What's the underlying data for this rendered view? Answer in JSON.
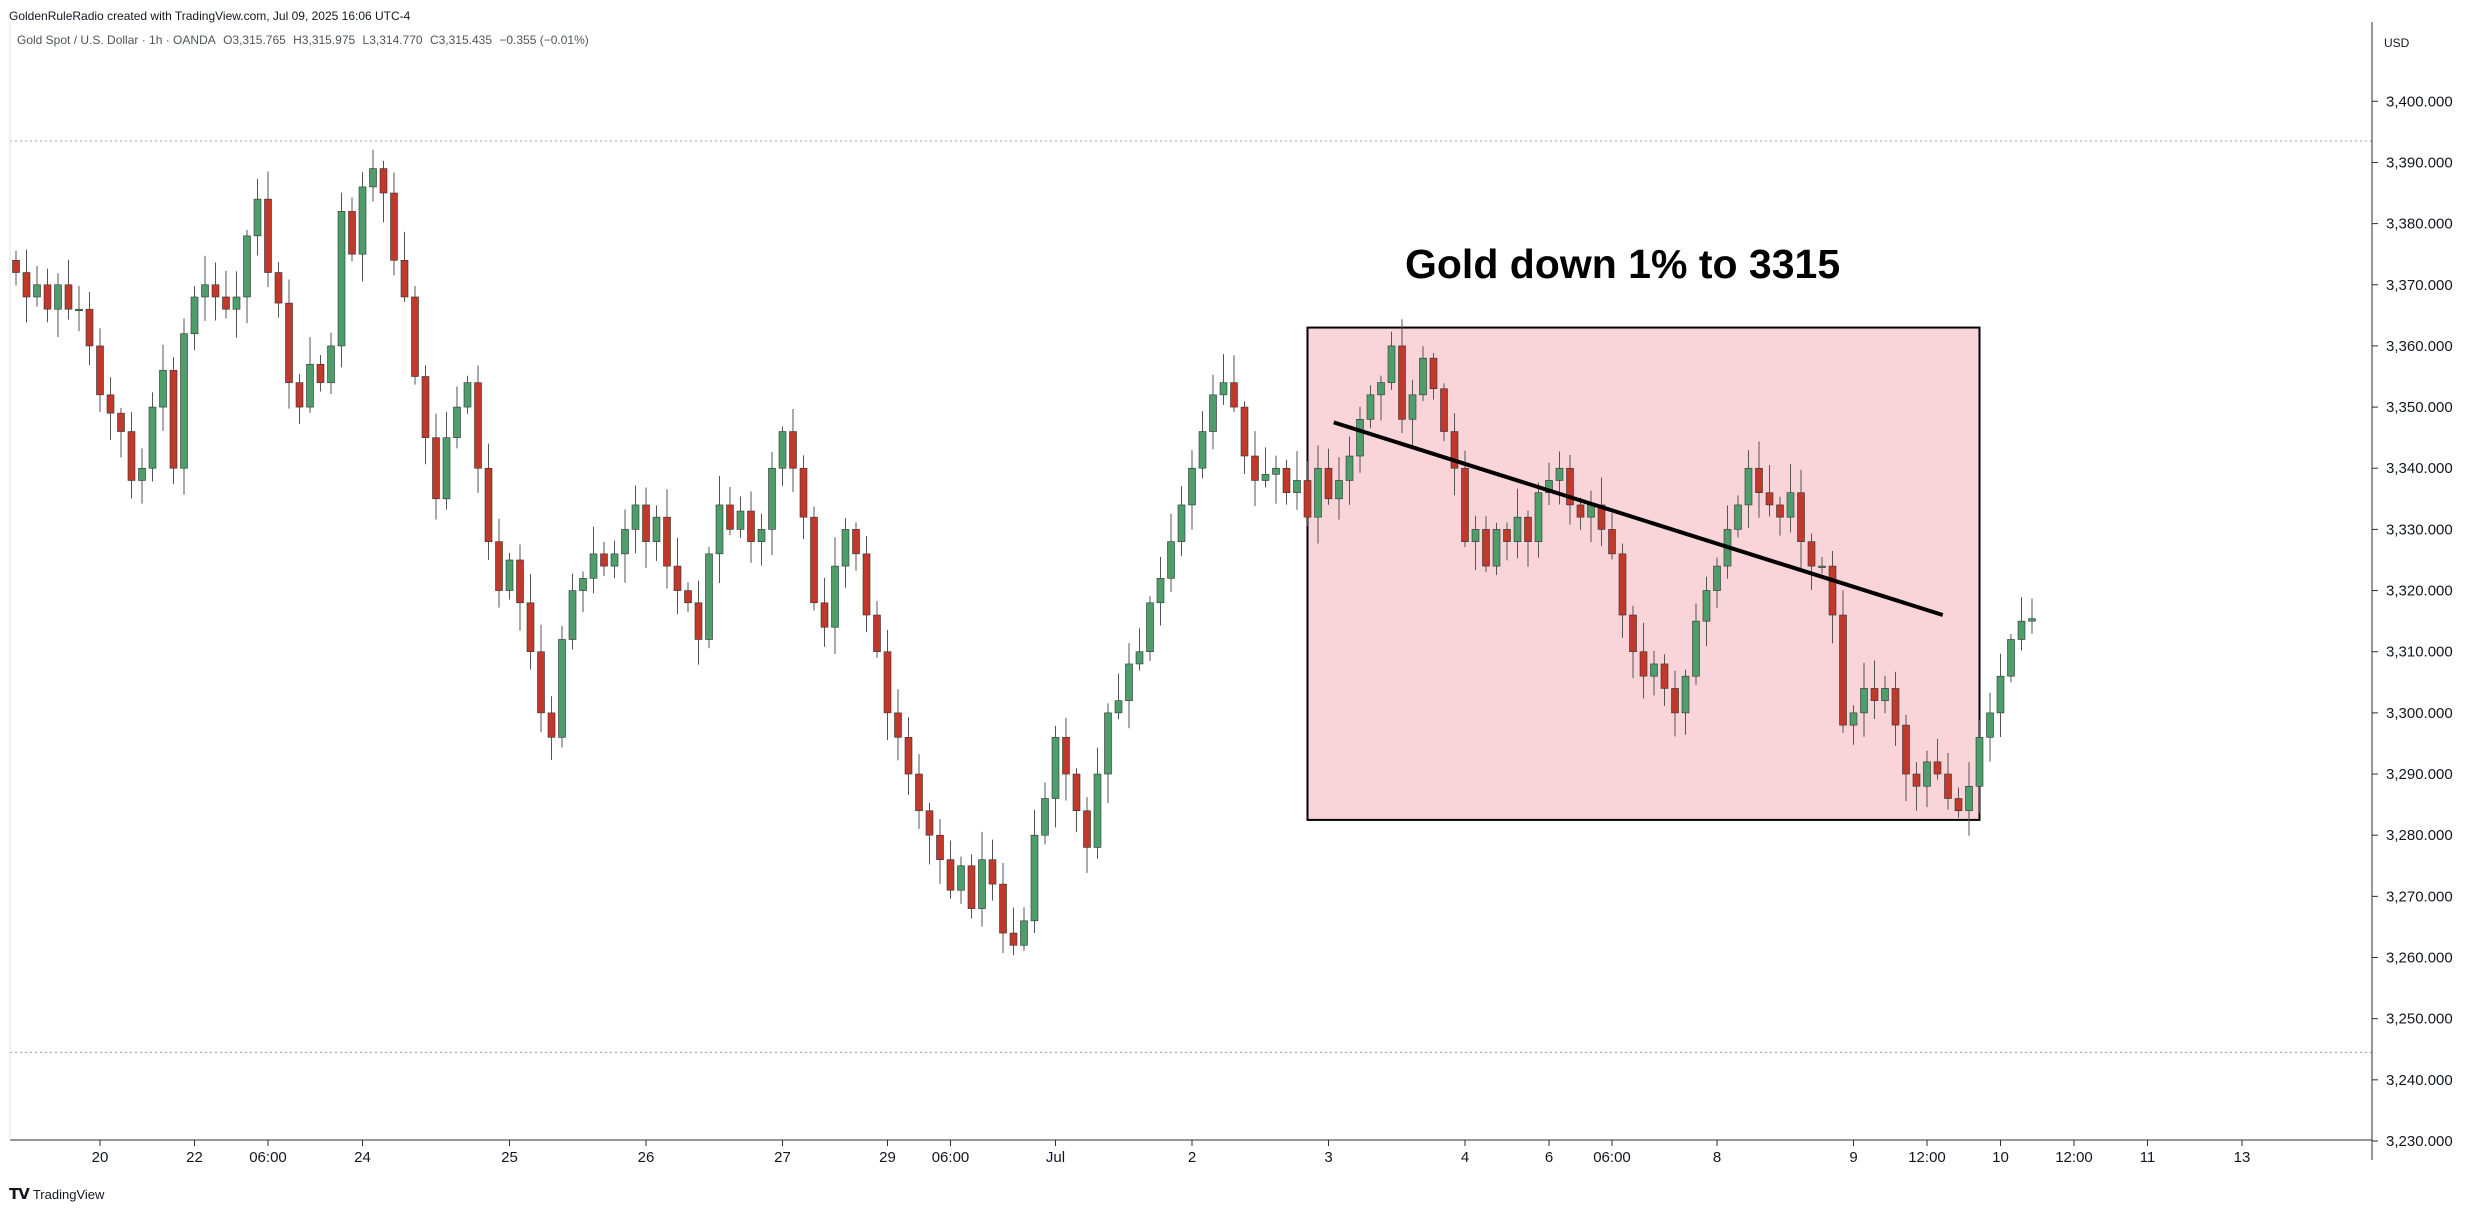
{
  "header": {
    "credit": "GoldenRuleRadio created with TradingView.com, Jul 09, 2025 16:06 UTC-4",
    "symbol": "Gold Spot / U.S. Dollar · 1h · OANDA",
    "open": "O3,315.765",
    "high": "H3,315.975",
    "low": "L3,314.770",
    "close": "C3,315.435",
    "change": "−0.355 (−0.01%)"
  },
  "axis": {
    "currency": "USD"
  },
  "footer": {
    "brand": "TradingView"
  },
  "colors": {
    "up": "#4d9e6b",
    "down": "#c0392b",
    "box_fill": "#f9d4d9",
    "line": "#000000"
  },
  "chart_data": {
    "type": "candlestick",
    "title": "",
    "annotation": "Gold down 1% to 3315",
    "y_axis": {
      "ylim": [
        3230,
        3410
      ],
      "ticks": [
        3230,
        3240,
        3250,
        3260,
        3270,
        3280,
        3290,
        3300,
        3310,
        3320,
        3330,
        3340,
        3350,
        3360,
        3370,
        3380,
        3390,
        3400
      ],
      "tick_labels": [
        "3,230.000",
        "3,240.000",
        "3,250.000",
        "3,260.000",
        "3,270.000",
        "3,280.000",
        "3,290.000",
        "3,300.000",
        "3,310.000",
        "3,320.000",
        "3,330.000",
        "3,340.000",
        "3,350.000",
        "3,360.000",
        "3,370.000",
        "3,380.000",
        "3,390.000",
        "3,400.000"
      ]
    },
    "x_axis": {
      "xlim": [
        0,
        212
      ],
      "ticks": [
        {
          "x": 8,
          "label": "20"
        },
        {
          "x": 17,
          "label": "22"
        },
        {
          "x": 24,
          "label": "06:00"
        },
        {
          "x": 33,
          "label": "24"
        },
        {
          "x": 47,
          "label": "25"
        },
        {
          "x": 60,
          "label": "26"
        },
        {
          "x": 73,
          "label": "27"
        },
        {
          "x": 83,
          "label": "29"
        },
        {
          "x": 89,
          "label": "06:00"
        },
        {
          "x": 99,
          "label": "Jul"
        },
        {
          "x": 112,
          "label": "2"
        },
        {
          "x": 125,
          "label": "3"
        },
        {
          "x": 138,
          "label": "4"
        },
        {
          "x": 146,
          "label": "6"
        },
        {
          "x": 152,
          "label": "06:00"
        },
        {
          "x": 162,
          "label": "8"
        },
        {
          "x": 175,
          "label": "9"
        },
        {
          "x": 182,
          "label": "12:00"
        },
        {
          "x": 189,
          "label": "10"
        },
        {
          "x": 196,
          "label": "12:00"
        },
        {
          "x": 203,
          "label": "11"
        },
        {
          "x": 212,
          "label": "13"
        }
      ]
    },
    "reference_levels": [
      3393.5,
      3244.5
    ],
    "shaded_region": {
      "x0": 123,
      "x1": 187,
      "y0": 3282.5,
      "y1": 3363
    },
    "trendline": {
      "x0": 125.5,
      "y0": 3347.5,
      "x1": 183.5,
      "y1": 3316
    },
    "close_prices": [
      3372,
      3368,
      3370,
      3366,
      3370,
      3366,
      3366,
      3360,
      3352,
      3349,
      3346,
      3338,
      3340,
      3350,
      3356,
      3340,
      3362,
      3368,
      3370,
      3368,
      3366,
      3368,
      3378,
      3384,
      3372,
      3367,
      3354,
      3350,
      3357,
      3354,
      3360,
      3382,
      3375,
      3386,
      3389,
      3385,
      3374,
      3368,
      3355,
      3345,
      3335,
      3345,
      3350,
      3354,
      3340,
      3328,
      3320,
      3325,
      3318,
      3310,
      3300,
      3296,
      3312,
      3320,
      3322,
      3326,
      3324,
      3326,
      3330,
      3334,
      3328,
      3332,
      3324,
      3320,
      3318,
      3312,
      3326,
      3334,
      3330,
      3333,
      3328,
      3330,
      3340,
      3346,
      3340,
      3332,
      3318,
      3314,
      3324,
      3330,
      3326,
      3316,
      3310,
      3300,
      3296,
      3290,
      3284,
      3280,
      3276,
      3271,
      3275,
      3268,
      3276,
      3272,
      3264,
      3262,
      3266,
      3280,
      3286,
      3296,
      3290,
      3284,
      3278,
      3290,
      3300,
      3302,
      3308,
      3310,
      3318,
      3322,
      3328,
      3334,
      3340,
      3346,
      3352,
      3354,
      3350,
      3342,
      3338,
      3339,
      3340,
      3336,
      3338,
      3332,
      3340,
      3335,
      3338,
      3342,
      3348,
      3352,
      3354,
      3360,
      3348,
      3352,
      3358,
      3353,
      3346,
      3340,
      3328,
      3330,
      3324,
      3330,
      3328,
      3332,
      3328,
      3336,
      3338,
      3340,
      3334,
      3332,
      3334,
      3330,
      3326,
      3316,
      3310,
      3306,
      3308,
      3304,
      3300,
      3306,
      3315,
      3320,
      3324,
      3330,
      3334,
      3340,
      3336,
      3334,
      3332,
      3336,
      3328,
      3324,
      3324,
      3316,
      3298,
      3300,
      3304,
      3302,
      3304,
      3298,
      3290,
      3288,
      3292,
      3290,
      3286,
      3284,
      3288,
      3296,
      3300,
      3306,
      3312,
      3315,
      3315.4
    ]
  }
}
